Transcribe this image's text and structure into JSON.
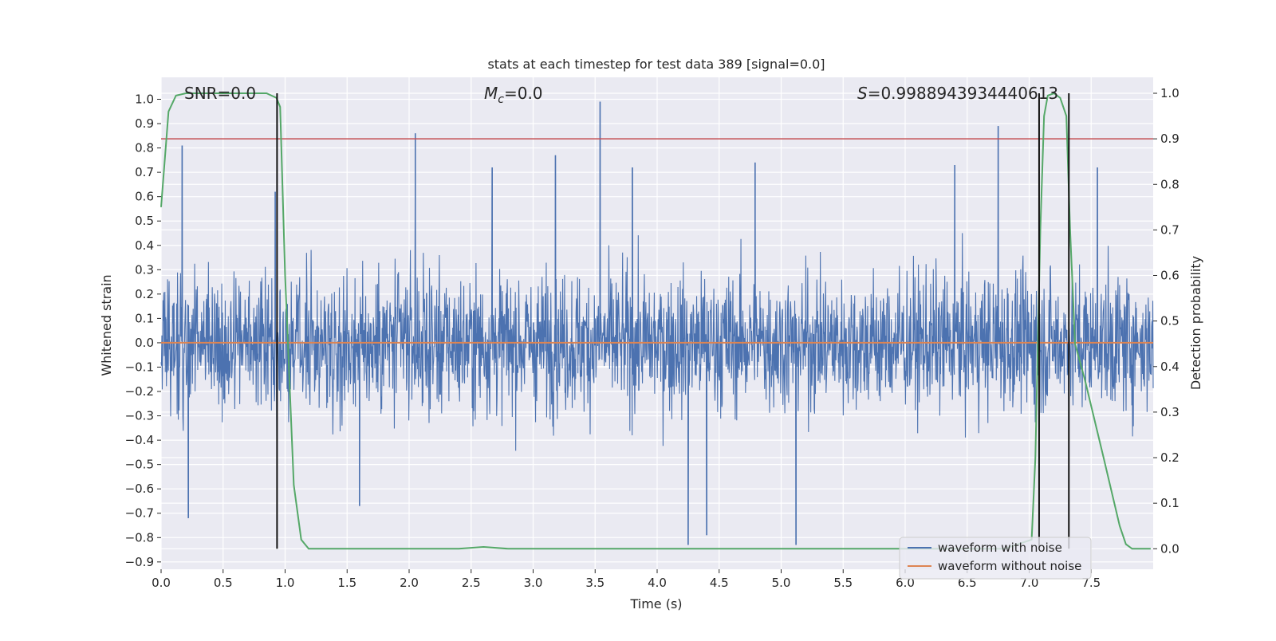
{
  "chart_data": {
    "type": "line",
    "title": "stats at each timestep for test data 389 [signal=0.0]",
    "xlabel": "Time (s)",
    "ylabel_left": "Whitened strain",
    "ylabel_right": "Detection probability",
    "xlim": [
      0.0,
      8.0
    ],
    "ylim_left": [
      -0.93,
      1.09
    ],
    "ylim_right": [
      -0.045,
      1.035
    ],
    "x_ticks": [
      0.0,
      0.5,
      1.0,
      1.5,
      2.0,
      2.5,
      3.0,
      3.5,
      4.0,
      4.5,
      5.0,
      5.5,
      6.0,
      6.5,
      7.0,
      7.5
    ],
    "x_tick_labels": [
      "0.0",
      "0.5",
      "1.0",
      "1.5",
      "2.0",
      "2.5",
      "3.0",
      "3.5",
      "4.0",
      "4.5",
      "5.0",
      "5.5",
      "6.0",
      "6.5",
      "7.0",
      "7.5"
    ],
    "y_left_ticks": [
      1.0,
      0.9,
      0.8,
      0.7,
      0.6,
      0.5,
      0.4,
      0.3,
      0.2,
      0.1,
      0.0,
      -0.1,
      -0.2,
      -0.3,
      -0.4,
      -0.5,
      -0.6,
      -0.7,
      -0.8,
      -0.9
    ],
    "y_left_tick_labels": [
      "1.0",
      "0.9",
      "0.8",
      "0.7",
      "0.6",
      "0.5",
      "0.4",
      "0.3",
      "0.2",
      "0.1",
      "0.0",
      "−0.1",
      "−0.2",
      "−0.3",
      "−0.4",
      "−0.5",
      "−0.6",
      "−0.7",
      "−0.8",
      "−0.9"
    ],
    "y_right_ticks": [
      1.0,
      0.9,
      0.8,
      0.7,
      0.6,
      0.5,
      0.4,
      0.3,
      0.2,
      0.1,
      0.0
    ],
    "y_right_tick_labels": [
      "1.0",
      "0.9",
      "0.8",
      "0.7",
      "0.6",
      "0.5",
      "0.4",
      "0.3",
      "0.2",
      "0.1",
      "0.0"
    ],
    "annotations": {
      "snr": "SNR=0.0",
      "mc_symbol": "M",
      "mc_subscript": "c",
      "mc_value": "=0.0",
      "s_symbol": "S",
      "s_value": "=0.9988943934440613"
    },
    "series": [
      {
        "name": "waveform with noise",
        "color": "#4c72b0",
        "axis": "left",
        "envelope": {
          "typical_abs": 0.35,
          "noise_std": 0.14
        },
        "peaks": [
          {
            "x": 0.17,
            "y": 0.81
          },
          {
            "x": 0.22,
            "y": -0.72
          },
          {
            "x": 0.92,
            "y": 0.62
          },
          {
            "x": 2.05,
            "y": 0.86
          },
          {
            "x": 2.67,
            "y": 0.72
          },
          {
            "x": 3.18,
            "y": 0.77
          },
          {
            "x": 3.54,
            "y": 0.99
          },
          {
            "x": 4.25,
            "y": -0.83
          },
          {
            "x": 4.4,
            "y": -0.79
          },
          {
            "x": 4.79,
            "y": 0.74
          },
          {
            "x": 5.12,
            "y": -0.83
          },
          {
            "x": 6.75,
            "y": 0.89
          },
          {
            "x": 6.4,
            "y": 0.73
          },
          {
            "x": 1.6,
            "y": -0.67
          },
          {
            "x": 3.8,
            "y": 0.72
          },
          {
            "x": 7.55,
            "y": 0.72
          }
        ]
      },
      {
        "name": "waveform without noise",
        "color": "#dd8452",
        "axis": "left",
        "x": [
          0.0,
          8.0
        ],
        "y": [
          0.0,
          0.0
        ]
      },
      {
        "name": "detection probability",
        "color": "#55a868",
        "axis": "right",
        "x": [
          0.0,
          0.06,
          0.12,
          0.2,
          0.5,
          0.85,
          0.93,
          0.96,
          1.0,
          1.07,
          1.13,
          1.19,
          1.3,
          2.0,
          2.4,
          2.6,
          2.8,
          3.5,
          5.0,
          6.8,
          7.02,
          7.05,
          7.09,
          7.12,
          7.15,
          7.2,
          7.25,
          7.3,
          7.33,
          7.37,
          7.45,
          7.6,
          7.73,
          7.78,
          7.83,
          7.9,
          7.98
        ],
        "y": [
          0.75,
          0.96,
          0.995,
          1.0,
          1.0,
          1.0,
          0.99,
          0.97,
          0.6,
          0.14,
          0.02,
          0.0,
          0.0,
          0.0,
          0.0,
          0.004,
          0.0,
          0.0,
          0.0,
          0.0,
          0.02,
          0.2,
          0.7,
          0.95,
          0.995,
          1.0,
          0.99,
          0.95,
          0.7,
          0.45,
          0.37,
          0.2,
          0.05,
          0.01,
          0.0,
          0.0,
          0.0
        ]
      }
    ],
    "threshold_line": {
      "color": "#c44e52",
      "axis": "right",
      "value": 0.9
    },
    "vertical_lines": {
      "color": "#111111",
      "x": [
        0.935,
        7.08,
        7.32
      ],
      "y_range_right": [
        0.0,
        1.0
      ]
    },
    "legend": {
      "position": "lower-right",
      "entries": [
        {
          "label": "waveform with noise",
          "color": "#4c72b0"
        },
        {
          "label": "waveform without noise",
          "color": "#dd8452"
        }
      ]
    },
    "style": {
      "plot_bg": "#eaeaf2",
      "grid_color": "#ffffff"
    }
  }
}
